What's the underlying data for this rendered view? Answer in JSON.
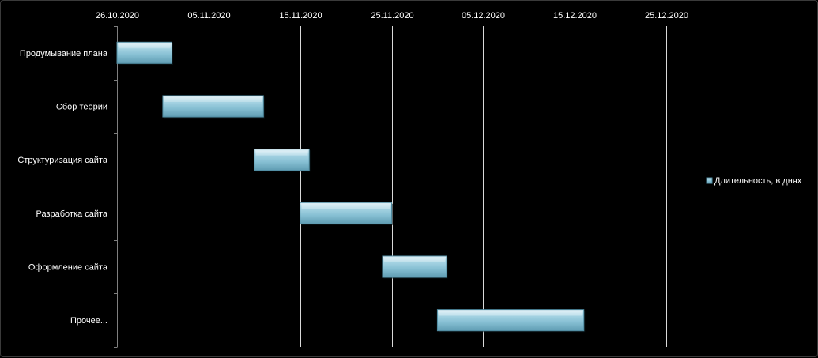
{
  "chart_data": {
    "type": "bar",
    "orientation": "horizontal",
    "subtype": "gantt",
    "title": "",
    "xlabel": "",
    "ylabel": "",
    "x_axis_position": "top",
    "x_ticks": [
      "26.10.2020",
      "05.11.2020",
      "15.11.2020",
      "25.11.2020",
      "05.12.2020",
      "15.12.2020",
      "25.12.2020"
    ],
    "xlim": [
      "2020-10-26",
      "2020-12-25"
    ],
    "grid": "vertical",
    "legend_position": "right",
    "categories": [
      "Продумывание плана",
      "Сбор теории",
      "Структуризация сайта",
      "Разработка сайта",
      "Оформление  сайта",
      "Прочее..."
    ],
    "series": [
      {
        "name": "Длительность,  в днях",
        "color": "#8ec4d6",
        "tasks": [
          {
            "start": "2020-10-26",
            "end": "2020-11-01",
            "duration": 6
          },
          {
            "start": "2020-10-31",
            "end": "2020-11-11",
            "duration": 11
          },
          {
            "start": "2020-11-10",
            "end": "2020-11-16",
            "duration": 6
          },
          {
            "start": "2020-11-15",
            "end": "2020-11-25",
            "duration": 10
          },
          {
            "start": "2020-11-24",
            "end": "2020-12-01",
            "duration": 7
          },
          {
            "start": "2020-11-30",
            "end": "2020-12-16",
            "duration": 16
          }
        ]
      }
    ]
  },
  "colors": {
    "background": "#000000",
    "gridline": "#ffffff",
    "axis": "#7f7f7f",
    "text": "#ffffff",
    "bar_fill": "#8ec4d6",
    "bar_edge": "#4f8ba0"
  }
}
